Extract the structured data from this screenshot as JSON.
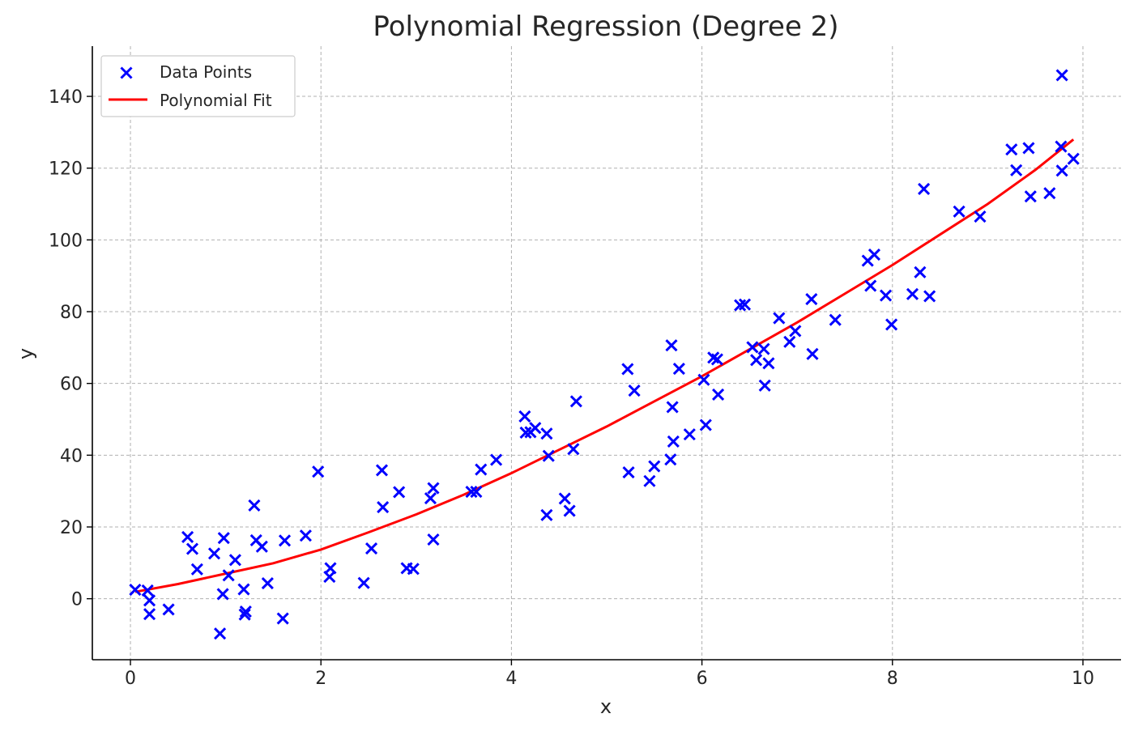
{
  "chart_data": {
    "type": "scatter",
    "title": "Polynomial Regression (Degree 2)",
    "xlabel": "x",
    "ylabel": "y",
    "xlim": [
      -0.4,
      10.4
    ],
    "ylim": [
      -17,
      154
    ],
    "xticks": [
      0,
      2,
      4,
      6,
      8,
      10
    ],
    "yticks": [
      0,
      20,
      40,
      60,
      80,
      100,
      120,
      140
    ],
    "grid": true,
    "legend_position": "top-left",
    "series": [
      {
        "name": "Data Points",
        "kind": "scatter",
        "marker": "x",
        "color": "#0000ff",
        "points": [
          [
            0.05,
            2.5
          ],
          [
            0.18,
            2.3
          ],
          [
            0.2,
            -0.5
          ],
          [
            0.2,
            -4.3
          ],
          [
            0.4,
            -3.0
          ],
          [
            0.6,
            17.2
          ],
          [
            0.65,
            13.9
          ],
          [
            0.7,
            8.2
          ],
          [
            0.88,
            12.6
          ],
          [
            0.94,
            -9.7
          ],
          [
            0.97,
            1.3
          ],
          [
            0.98,
            16.9
          ],
          [
            1.03,
            6.5
          ],
          [
            1.1,
            10.8
          ],
          [
            1.19,
            2.6
          ],
          [
            1.2,
            -4.4
          ],
          [
            1.21,
            -3.6
          ],
          [
            1.3,
            26.0
          ],
          [
            1.32,
            16.3
          ],
          [
            1.38,
            14.5
          ],
          [
            1.44,
            4.3
          ],
          [
            1.6,
            -5.5
          ],
          [
            1.62,
            16.2
          ],
          [
            1.84,
            17.6
          ],
          [
            1.97,
            35.4
          ],
          [
            2.09,
            6.1
          ],
          [
            2.1,
            8.5
          ],
          [
            2.45,
            4.4
          ],
          [
            2.53,
            14.0
          ],
          [
            2.64,
            35.8
          ],
          [
            2.65,
            25.5
          ],
          [
            2.82,
            29.7
          ],
          [
            2.9,
            8.5
          ],
          [
            2.97,
            8.3
          ],
          [
            3.15,
            28.0
          ],
          [
            3.18,
            30.8
          ],
          [
            3.18,
            16.5
          ],
          [
            3.58,
            29.8
          ],
          [
            3.63,
            29.8
          ],
          [
            3.68,
            36.0
          ],
          [
            3.84,
            38.7
          ],
          [
            4.14,
            50.8
          ],
          [
            4.15,
            46.3
          ],
          [
            4.2,
            46.4
          ],
          [
            4.25,
            47.6
          ],
          [
            4.37,
            46.0
          ],
          [
            4.37,
            23.3
          ],
          [
            4.39,
            39.8
          ],
          [
            4.56,
            27.9
          ],
          [
            4.61,
            24.5
          ],
          [
            4.65,
            41.7
          ],
          [
            4.68,
            55.0
          ],
          [
            5.22,
            64.0
          ],
          [
            5.23,
            35.2
          ],
          [
            5.29,
            58.0
          ],
          [
            5.45,
            32.8
          ],
          [
            5.5,
            36.9
          ],
          [
            5.67,
            38.8
          ],
          [
            5.68,
            70.6
          ],
          [
            5.69,
            53.4
          ],
          [
            5.7,
            43.8
          ],
          [
            5.76,
            64.1
          ],
          [
            5.87,
            45.8
          ],
          [
            6.02,
            61.0
          ],
          [
            6.04,
            48.4
          ],
          [
            6.12,
            67.2
          ],
          [
            6.16,
            66.7
          ],
          [
            6.17,
            56.9
          ],
          [
            6.4,
            81.8
          ],
          [
            6.45,
            82.0
          ],
          [
            6.53,
            70.1
          ],
          [
            6.57,
            66.5
          ],
          [
            6.65,
            69.6
          ],
          [
            6.66,
            59.4
          ],
          [
            6.7,
            65.6
          ],
          [
            6.81,
            78.2
          ],
          [
            6.92,
            71.6
          ],
          [
            6.98,
            74.6
          ],
          [
            7.15,
            83.5
          ],
          [
            7.16,
            68.2
          ],
          [
            7.4,
            77.7
          ],
          [
            7.74,
            94.2
          ],
          [
            7.77,
            87.2
          ],
          [
            7.81,
            95.9
          ],
          [
            7.93,
            84.5
          ],
          [
            7.99,
            76.4
          ],
          [
            8.21,
            84.9
          ],
          [
            8.29,
            91.0
          ],
          [
            8.33,
            114.2
          ],
          [
            8.39,
            84.3
          ],
          [
            8.7,
            107.9
          ],
          [
            8.92,
            106.5
          ],
          [
            9.25,
            125.2
          ],
          [
            9.3,
            119.4
          ],
          [
            9.43,
            125.6
          ],
          [
            9.45,
            112.1
          ],
          [
            9.65,
            113.0
          ],
          [
            9.77,
            126.0
          ],
          [
            9.78,
            145.9
          ],
          [
            9.78,
            119.3
          ],
          [
            9.9,
            122.6
          ]
        ]
      },
      {
        "name": "Polynomial Fit",
        "kind": "line",
        "color": "#ff0000",
        "points": [
          [
            0.05,
            1.9
          ],
          [
            0.5,
            4.1
          ],
          [
            1.0,
            7.0
          ],
          [
            1.5,
            9.9
          ],
          [
            2.0,
            13.7
          ],
          [
            2.5,
            18.5
          ],
          [
            3.0,
            23.5
          ],
          [
            3.5,
            29.0
          ],
          [
            4.0,
            35.0
          ],
          [
            4.5,
            41.5
          ],
          [
            5.0,
            48.0
          ],
          [
            5.5,
            55.0
          ],
          [
            6.0,
            62.0
          ],
          [
            6.5,
            69.5
          ],
          [
            7.0,
            77.0
          ],
          [
            7.5,
            85.0
          ],
          [
            8.0,
            93.0
          ],
          [
            8.5,
            101.5
          ],
          [
            9.0,
            110.0
          ],
          [
            9.5,
            119.5
          ],
          [
            9.9,
            128.0
          ]
        ]
      }
    ]
  }
}
